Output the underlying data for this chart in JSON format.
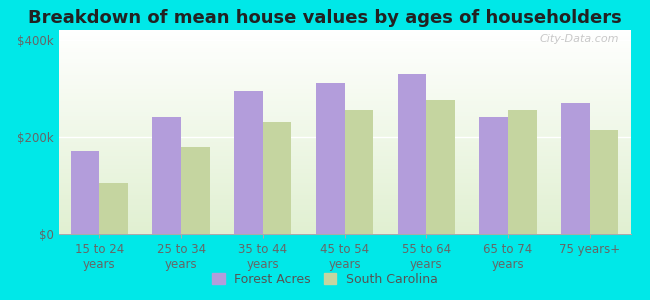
{
  "title": "Breakdown of mean house values by ages of householders",
  "categories": [
    "15 to 24\nyears",
    "25 to 34\nyears",
    "35 to 44\nyears",
    "45 to 54\nyears",
    "55 to 64\nyears",
    "65 to 74\nyears",
    "75 years+"
  ],
  "forest_acres": [
    170000,
    240000,
    295000,
    310000,
    330000,
    240000,
    270000
  ],
  "south_carolina": [
    105000,
    180000,
    230000,
    255000,
    275000,
    255000,
    215000
  ],
  "forest_acres_color": "#b39ddb",
  "south_carolina_color": "#c5d5a0",
  "yticks": [
    0,
    200000,
    400000
  ],
  "ytick_labels": [
    "$0",
    "$200k",
    "$400k"
  ],
  "ylim": [
    0,
    420000
  ],
  "legend_labels": [
    "Forest Acres",
    "South Carolina"
  ],
  "bar_width": 0.35,
  "title_fontsize": 13,
  "tick_fontsize": 8.5,
  "legend_fontsize": 9,
  "figure_bg_color": "#00e8e8",
  "watermark": "City-Data.com"
}
